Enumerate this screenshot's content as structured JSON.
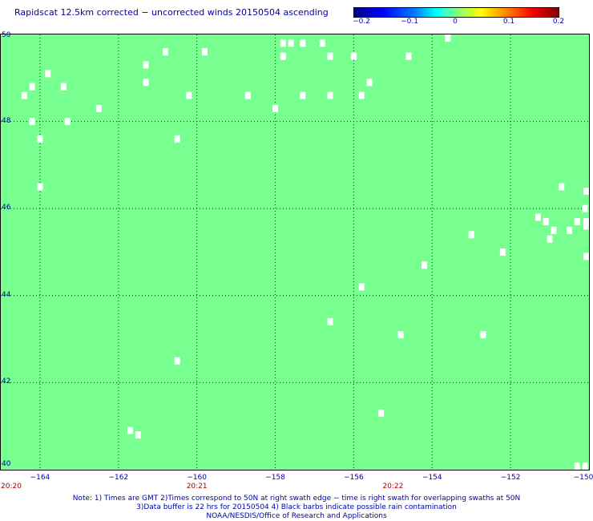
{
  "header": {
    "title": "Rapidscat 12.5km corrected − uncorrected winds 20150504 ascending"
  },
  "colorbar": {
    "ticks": [
      "−0.2",
      "−0.1",
      "0",
      "0.1",
      "0.2"
    ]
  },
  "map": {
    "field_color": "#77ff8f",
    "grid_color": "#002288",
    "bounds": {
      "lon": [
        -165,
        -150
      ],
      "lat": [
        40,
        50
      ]
    },
    "lat_ticks": [
      {
        "value": 50,
        "label": "50"
      },
      {
        "value": 48,
        "label": "48"
      },
      {
        "value": 46,
        "label": "46"
      },
      {
        "value": 44,
        "label": "44"
      },
      {
        "value": 42,
        "label": "42"
      },
      {
        "value": 40,
        "label": "40"
      }
    ],
    "lon_ticks": [
      {
        "value": -164,
        "label": "−164"
      },
      {
        "value": -162,
        "label": "−162"
      },
      {
        "value": -160,
        "label": "−160"
      },
      {
        "value": -158,
        "label": "−158"
      },
      {
        "value": -156,
        "label": "−156"
      },
      {
        "value": -154,
        "label": "−154"
      },
      {
        "value": -152,
        "label": "−152"
      },
      {
        "value": -150,
        "label": "−150"
      }
    ],
    "time_ticks": [
      {
        "lon": -165,
        "label": "20:20"
      },
      {
        "lon": -160,
        "label": "20:21"
      },
      {
        "lon": -155,
        "label": "20:22"
      }
    ],
    "missing_cells": [
      [
        -164.4,
        48.6
      ],
      [
        -164.2,
        48.8
      ],
      [
        -164.2,
        48.0
      ],
      [
        -164.0,
        47.6
      ],
      [
        -164.0,
        46.5
      ],
      [
        -163.8,
        49.1
      ],
      [
        -163.4,
        48.8
      ],
      [
        -163.3,
        48.0
      ],
      [
        -162.5,
        48.3
      ],
      [
        -161.3,
        48.9
      ],
      [
        -161.3,
        49.3
      ],
      [
        -160.8,
        49.6
      ],
      [
        -160.5,
        47.6
      ],
      [
        -160.2,
        48.6
      ],
      [
        -159.8,
        49.6
      ],
      [
        -158.7,
        48.6
      ],
      [
        -158.0,
        48.3
      ],
      [
        -157.8,
        49.8
      ],
      [
        -157.8,
        49.5
      ],
      [
        -157.6,
        49.8
      ],
      [
        -157.3,
        49.8
      ],
      [
        -157.3,
        48.6
      ],
      [
        -156.8,
        49.8
      ],
      [
        -156.6,
        49.5
      ],
      [
        -156.6,
        48.6
      ],
      [
        -156.0,
        49.5
      ],
      [
        -155.8,
        48.6
      ],
      [
        -155.6,
        48.9
      ],
      [
        -154.6,
        49.5
      ],
      [
        -153.6,
        50.0
      ],
      [
        -153.0,
        45.4
      ],
      [
        -152.2,
        45.0
      ],
      [
        -151.3,
        45.8
      ],
      [
        -151.1,
        45.7
      ],
      [
        -151.0,
        45.3
      ],
      [
        -150.9,
        45.5
      ],
      [
        -150.7,
        46.5
      ],
      [
        -150.5,
        45.5
      ],
      [
        -150.3,
        45.7
      ],
      [
        -150.1,
        46.0
      ],
      [
        -150.0,
        45.7
      ],
      [
        -150.0,
        45.6
      ],
      [
        -149.9,
        46.4
      ],
      [
        -149.8,
        45.7
      ],
      [
        -149.9,
        44.9
      ],
      [
        -154.2,
        44.7
      ],
      [
        -155.8,
        44.2
      ],
      [
        -156.6,
        43.4
      ],
      [
        -154.8,
        43.1
      ],
      [
        -152.7,
        43.1
      ],
      [
        -160.5,
        42.5
      ],
      [
        -155.3,
        41.3
      ],
      [
        -161.7,
        40.9
      ],
      [
        -161.5,
        40.8
      ],
      [
        -150.3,
        40.0
      ],
      [
        -150.1,
        40.0
      ]
    ]
  },
  "notes": {
    "line1": "Note: 1) Times are GMT 2)Times correspond to 50N at right swath edge − time is right swath for overlapping swaths at 50N",
    "line2": "3)Data buffer is 22 hrs for 20150504 4) Black barbs indicate possible rain contamination",
    "line3": "NOAA/NESDIS/Office of Research and Applications"
  }
}
